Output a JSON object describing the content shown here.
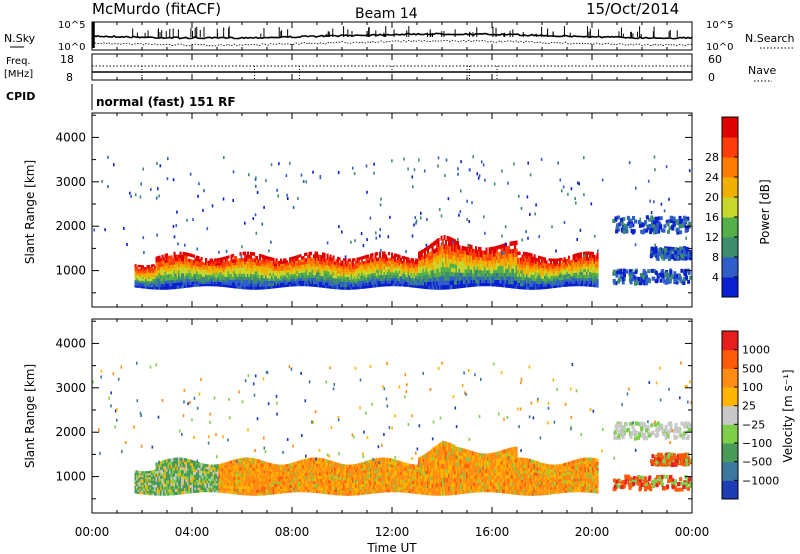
{
  "header": {
    "station": "McMurdo (fitACF)",
    "beam": "Beam 14",
    "date": "15/Oct/2014"
  },
  "top_panels": {
    "nsky_label": "N.Sky",
    "nsearch_label": "N.Search",
    "freq_label_line1": "Freq.",
    "freq_label_line2": "[MHz]",
    "nave_label": "Nave",
    "cpid_label": "CPID",
    "cpid_text": "normal (fast) 151 RF",
    "noise_ticks": [
      "10^5",
      "10^0"
    ],
    "noise_right_ticks": [
      "10^5",
      "10^0"
    ],
    "freq_ticks": [
      "18",
      "8"
    ],
    "nave_ticks": [
      "60",
      "0"
    ]
  },
  "chart_data": [
    {
      "type": "heatmap",
      "name": "power",
      "ylabel": "Slant Range [km]",
      "ylim": [
        180,
        4550
      ],
      "yticks": [
        "1000",
        "2000",
        "3000",
        "4000"
      ],
      "colorbar_label": "Power [dB]",
      "colorbar_ticks": [
        "4",
        "8",
        "12",
        "16",
        "20",
        "24",
        "28"
      ],
      "colorbar_colors": [
        "#0a1fd0",
        "#2f5ec8",
        "#3d8c6e",
        "#55b04a",
        "#c8d72c",
        "#f0b000",
        "#ff7a00",
        "#ff3c0a",
        "#e00000"
      ]
    },
    {
      "type": "heatmap",
      "name": "velocity",
      "ylabel": "Slant Range [km]",
      "ylim": [
        180,
        4550
      ],
      "yticks": [
        "1000",
        "2000",
        "3000",
        "4000"
      ],
      "colorbar_label": "Velocity [m s⁻¹]",
      "colorbar_ticks": [
        "1000",
        "500",
        "100",
        "25",
        "−25",
        "−100",
        "−500",
        "−1000"
      ],
      "colorbar_colors": [
        "#1e3cb4",
        "#3c78a0",
        "#4a9a5a",
        "#7ed04a",
        "#c8c8c8",
        "#ffb400",
        "#ff8c14",
        "#ff5a0a",
        "#e61e1e"
      ]
    }
  ],
  "x_axis": {
    "ticks": [
      "00:00",
      "04:00",
      "08:00",
      "12:00",
      "16:00",
      "20:00",
      "00:00"
    ],
    "label": "Time UT"
  }
}
